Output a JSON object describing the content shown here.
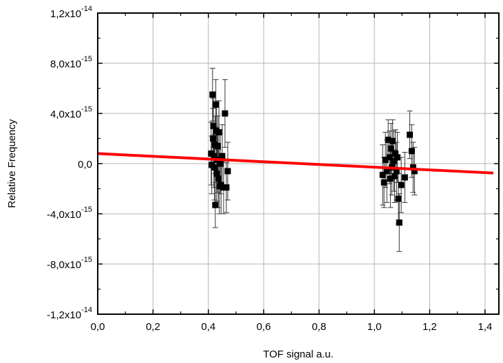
{
  "chart_data": {
    "type": "scatter",
    "xlabel": "TOF signal a.u.",
    "ylabel": "Relative Frequency",
    "xlim": [
      0.0,
      1.45
    ],
    "ylim": [
      -1.2e-14,
      1.2e-14
    ],
    "grid": true,
    "x_ticks": [
      0.0,
      0.2,
      0.4,
      0.6,
      0.8,
      1.0,
      1.2,
      1.4
    ],
    "x_tick_labels": [
      "0,0",
      "0,2",
      "0,4",
      "0,6",
      "0,8",
      "1,0",
      "1,2",
      "1,4"
    ],
    "y_ticks": [
      1.2e-14,
      8e-15,
      4e-15,
      0.0,
      -4e-15,
      -8e-15,
      -1.2e-14
    ],
    "y_tick_labels": [
      {
        "mantissa": "1,2x10",
        "exp": "-14"
      },
      {
        "mantissa": "8,0x10",
        "exp": "-15"
      },
      {
        "mantissa": "4,0x10",
        "exp": "-15"
      },
      {
        "mantissa": "0,0",
        "exp": ""
      },
      {
        "mantissa": "-4,0x10",
        "exp": "-15"
      },
      {
        "mantissa": "-8,0x10",
        "exp": "-15"
      },
      {
        "mantissa": "-1,2x10",
        "exp": "-14"
      }
    ],
    "points": [
      {
        "x": 0.41,
        "y": 8e-16,
        "err": 2.5e-15
      },
      {
        "x": 0.412,
        "y": -1e-16,
        "err": 2.3e-15
      },
      {
        "x": 0.415,
        "y": 5.5e-15,
        "err": 2.1e-15
      },
      {
        "x": 0.417,
        "y": 2e-15,
        "err": 2.4e-15
      },
      {
        "x": 0.418,
        "y": 3e-15,
        "err": 2.2e-15
      },
      {
        "x": 0.42,
        "y": 6e-16,
        "err": 2.5e-15
      },
      {
        "x": 0.422,
        "y": -3e-16,
        "err": 2.6e-15
      },
      {
        "x": 0.424,
        "y": 1.5e-15,
        "err": 2.3e-15
      },
      {
        "x": 0.425,
        "y": -3.3e-15,
        "err": 1.8e-15
      },
      {
        "x": 0.427,
        "y": 4.7e-15,
        "err": 2e-15
      },
      {
        "x": 0.429,
        "y": 2.6e-15,
        "err": 2.4e-15
      },
      {
        "x": 0.43,
        "y": -8e-16,
        "err": 2.2e-15
      },
      {
        "x": 0.432,
        "y": 3e-16,
        "err": 2.6e-15
      },
      {
        "x": 0.434,
        "y": 1.4e-15,
        "err": 2.4e-15
      },
      {
        "x": 0.436,
        "y": -1.2e-15,
        "err": 2.3e-15
      },
      {
        "x": 0.438,
        "y": 2.5e-15,
        "err": 2.5e-15
      },
      {
        "x": 0.44,
        "y": -1.8e-15,
        "err": 2.2e-15
      },
      {
        "x": 0.443,
        "y": 0.0,
        "err": 2.4e-15
      },
      {
        "x": 0.446,
        "y": -1.7e-15,
        "err": 2.3e-15
      },
      {
        "x": 0.45,
        "y": 6e-16,
        "err": 2.5e-15
      },
      {
        "x": 0.455,
        "y": -1.9e-15,
        "err": 2.1e-15
      },
      {
        "x": 0.46,
        "y": 4e-15,
        "err": 2.7e-15
      },
      {
        "x": 0.465,
        "y": -1.9e-15,
        "err": 2e-15
      },
      {
        "x": 0.47,
        "y": -6e-16,
        "err": 2.3e-15
      },
      {
        "x": 1.03,
        "y": -9e-16,
        "err": 2.4e-15
      },
      {
        "x": 1.035,
        "y": -1.5e-15,
        "err": 2e-15
      },
      {
        "x": 1.04,
        "y": 3e-16,
        "err": 2.2e-15
      },
      {
        "x": 1.045,
        "y": -6e-16,
        "err": 2.5e-15
      },
      {
        "x": 1.05,
        "y": 1.9e-15,
        "err": 1.6e-15
      },
      {
        "x": 1.055,
        "y": 5e-16,
        "err": 2.1e-15
      },
      {
        "x": 1.058,
        "y": -1.2e-15,
        "err": 2.3e-15
      },
      {
        "x": 1.06,
        "y": 1.2e-15,
        "err": 2e-15
      },
      {
        "x": 1.063,
        "y": -3e-16,
        "err": 2.2e-15
      },
      {
        "x": 1.066,
        "y": 1.8e-15,
        "err": 1.7e-15
      },
      {
        "x": 1.07,
        "y": 2e-16,
        "err": 2.4e-15
      },
      {
        "x": 1.073,
        "y": -1e-15,
        "err": 2.1e-15
      },
      {
        "x": 1.076,
        "y": 8e-16,
        "err": 1.9e-15
      },
      {
        "x": 1.08,
        "y": -6e-16,
        "err": 2.3e-15
      },
      {
        "x": 1.083,
        "y": 5e-16,
        "err": 2e-15
      },
      {
        "x": 1.087,
        "y": -2.8e-15,
        "err": 2e-15
      },
      {
        "x": 1.09,
        "y": -4.7e-15,
        "err": 2.3e-15
      },
      {
        "x": 1.097,
        "y": -1.7e-15,
        "err": 2.2e-15
      },
      {
        "x": 1.11,
        "y": -1.1e-15,
        "err": 2e-15
      },
      {
        "x": 1.128,
        "y": 2.3e-15,
        "err": 1.9e-15
      },
      {
        "x": 1.135,
        "y": 1e-15,
        "err": 2.1e-15
      },
      {
        "x": 1.14,
        "y": -3e-16,
        "err": 2e-15
      },
      {
        "x": 1.145,
        "y": -6e-16,
        "err": 1.9e-15
      }
    ],
    "fit_line": {
      "x": [
        0.0,
        1.43
      ],
      "y": [
        8e-16,
        -7.5e-16
      ],
      "color": "#ff0000"
    },
    "marker_color": "#000000",
    "grid_color": "#b4b4b4"
  }
}
